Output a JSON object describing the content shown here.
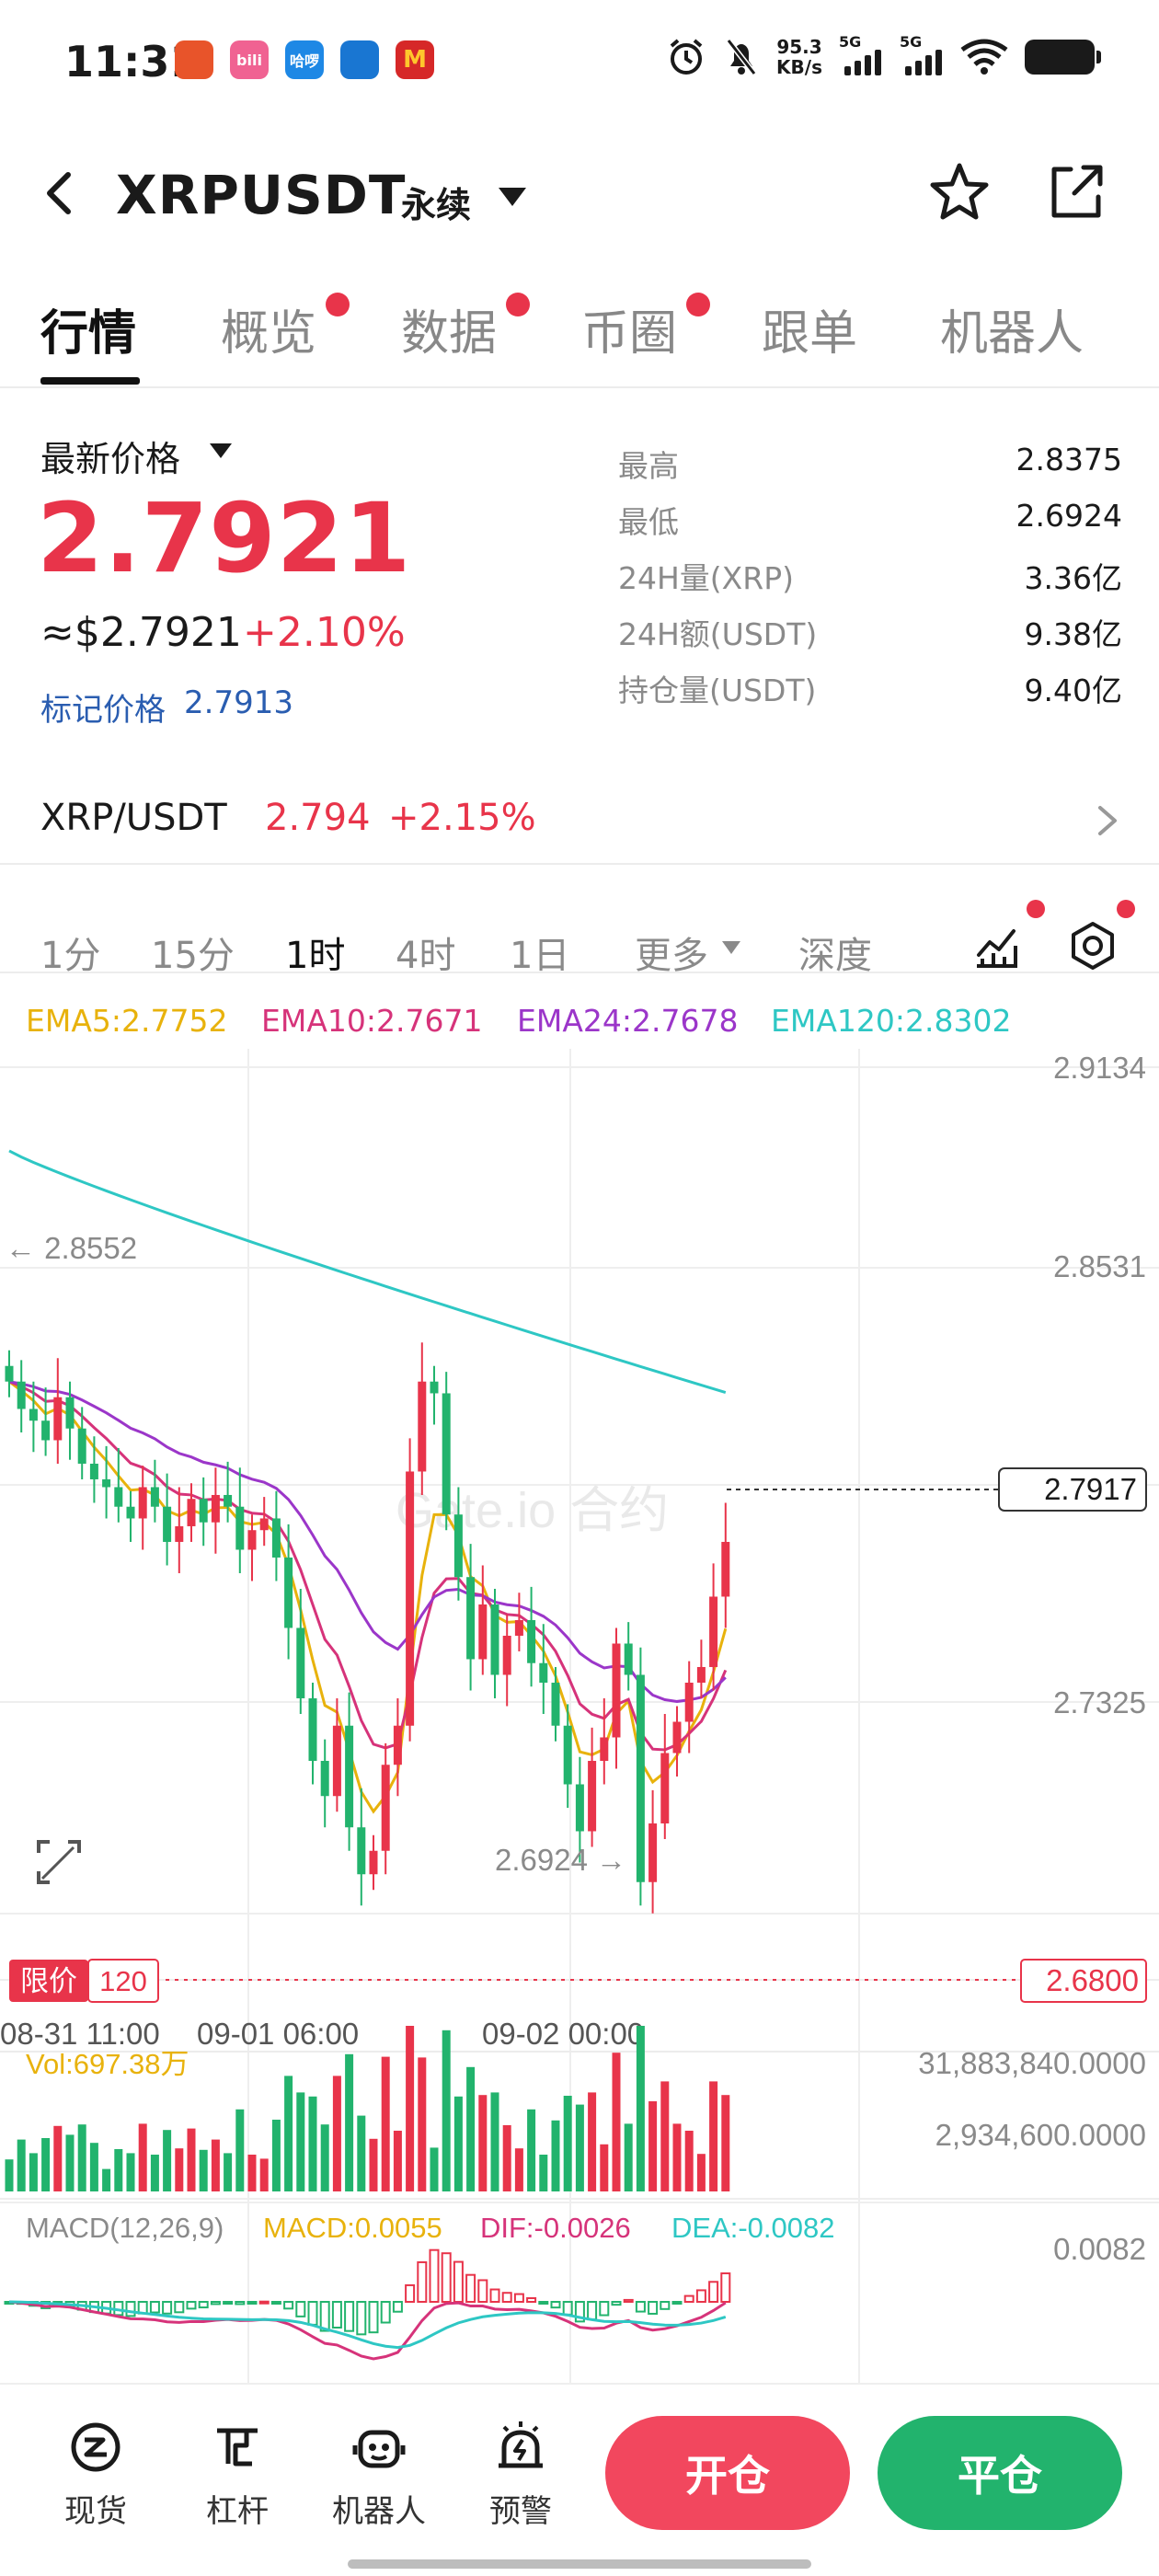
{
  "status_bar": {
    "time": "11:31",
    "net_speed_value": "95.3",
    "net_speed_unit": "KB/s",
    "signal1_label": "5G",
    "signal2_label": "5G",
    "app_icons": [
      "taobao-icon",
      "bilibili-icon",
      "hello-icon",
      "message-icon",
      "mcdonalds-icon"
    ],
    "app_icon_texts": [
      "",
      "bili",
      "哈啰",
      "",
      "M"
    ]
  },
  "header": {
    "pair": "XRPUSDT",
    "contract_type": "永续"
  },
  "tabs": [
    "行情",
    "概览",
    "数据",
    "币圈",
    "跟单",
    "机器人"
  ],
  "price": {
    "latest_label": "最新价格",
    "last_price": "2.7921",
    "usd_price": "≈$2.7921",
    "change_pct": "+2.10%",
    "mark_label": "标记价格",
    "mark_value": "2.7913"
  },
  "stats": [
    {
      "label": "最高",
      "value": "2.8375"
    },
    {
      "label": "最低",
      "value": "2.6924"
    },
    {
      "label": "24H量(XRP)",
      "value": "3.36亿"
    },
    {
      "label": "24H额(USDT)",
      "value": "9.38亿"
    },
    {
      "label": "持仓量(USDT)",
      "value": "9.40亿"
    }
  ],
  "spot": {
    "pair": "XRP/USDT",
    "price": "2.794",
    "change": "+2.15%"
  },
  "intervals": [
    "1分",
    "15分",
    "1时",
    "4时",
    "1日",
    "更多",
    "深度"
  ],
  "active_interval": "1时",
  "ema": {
    "ema5": "EMA5:2.7752",
    "ema10": "EMA10:2.7671",
    "ema24": "EMA24:2.7678",
    "ema120": "EMA120:2.8302",
    "colors": {
      "ema5": "#e8b20c",
      "ema10": "#d6337a",
      "ema24": "#9b36c9",
      "ema120": "#2ec7c4"
    }
  },
  "chart": {
    "y_labels": [
      "2.9134",
      "2.8531",
      "2.7325"
    ],
    "current_price_tag": "2.7917",
    "high_marker": "← 2.8552",
    "low_marker": "2.6924 →",
    "limit_label": "限价",
    "limit_qty": "120",
    "limit_price": "2.6800",
    "x_labels": [
      "08-31 11:00",
      "09-01 06:00",
      "09-02 00:00"
    ],
    "watermark": "Gate.io 合约",
    "vol_label": "Vol:697.38万",
    "vol_max": "31,883,840.0000",
    "vol_mid": "2,934,600.0000",
    "macd_title": "MACD(12,26,9)",
    "macd_value": "MACD:0.0055",
    "dif_value": "DIF:-0.0026",
    "dea_value": "DEA:-0.0082",
    "macd_axis": "0.0082",
    "up_color": "#e8344a",
    "down_color": "#22b36d"
  },
  "chart_data": {
    "type": "candlestick",
    "ohlc_close_approx": [
      2.833,
      2.826,
      2.823,
      2.818,
      2.829,
      2.821,
      2.812,
      2.808,
      2.806,
      2.801,
      2.798,
      2.806,
      2.801,
      2.792,
      2.796,
      2.803,
      2.797,
      2.804,
      2.801,
      2.79,
      2.795,
      2.798,
      2.788,
      2.77,
      2.752,
      2.736,
      2.727,
      2.745,
      2.719,
      2.707,
      2.713,
      2.735,
      2.745,
      2.81,
      2.833,
      2.83,
      2.799,
      2.783,
      2.762,
      2.776,
      2.758,
      2.768,
      2.772,
      2.761,
      2.756,
      2.745,
      2.73,
      2.718,
      2.736,
      2.742,
      2.766,
      2.758,
      2.705,
      2.72,
      2.738,
      2.746,
      2.756,
      2.76,
      2.778,
      2.792
    ],
    "ylim": [
      2.68,
      2.9134
    ],
    "x_tick_labels": [
      "08-31 11:00",
      "09-01 06:00",
      "09-02 00:00"
    ]
  },
  "bottom_nav": {
    "items": [
      "现货",
      "杠杆",
      "机器人",
      "预警"
    ],
    "open_label": "开仓",
    "close_label": "平仓"
  }
}
